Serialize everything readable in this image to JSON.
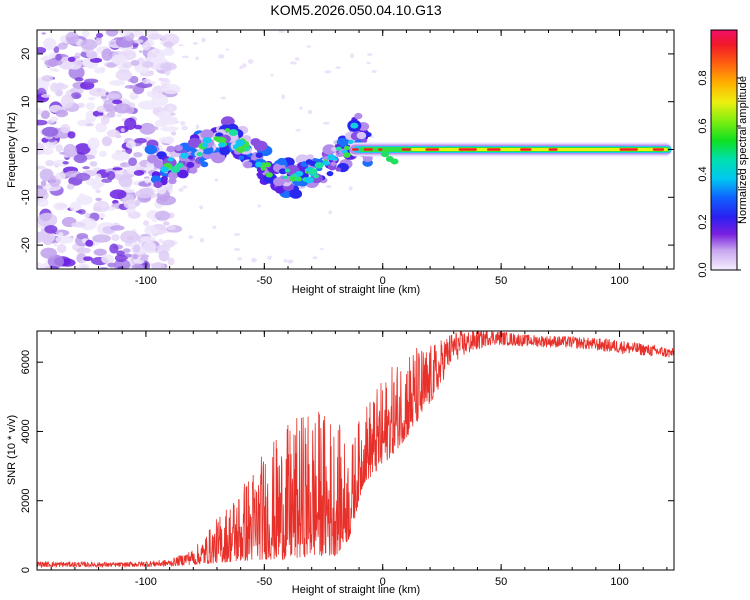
{
  "title": "KOM5.2026.050.04.10.G13",
  "chart_data": [
    {
      "type": "heatmap",
      "xlabel": "Height of straight line (km)",
      "ylabel": "Frequency (Hz)",
      "xlim": [
        -146,
        123
      ],
      "ylim": [
        -25,
        25
      ],
      "xticks": [
        "-100",
        "-50",
        "0",
        "50",
        "100"
      ],
      "xtick_values": [
        -100,
        -50,
        0,
        50,
        100
      ],
      "yticks": [
        "20",
        "10",
        "0",
        "-10",
        "-20"
      ],
      "ytick_values": [
        20,
        10,
        0,
        -10,
        -20
      ],
      "colorbar": {
        "label": "Normalized spectral amplitude",
        "range": [
          0.0,
          1.0
        ],
        "ticks": [
          "0.0",
          "0.2",
          "0.4",
          "0.6",
          "0.8"
        ],
        "tick_values": [
          0.0,
          0.2,
          0.4,
          0.6,
          0.8
        ]
      },
      "ridge": [
        {
          "x": -96,
          "y": -4
        },
        {
          "x": -88,
          "y": -3
        },
        {
          "x": -80,
          "y": -1
        },
        {
          "x": -72,
          "y": 1
        },
        {
          "x": -65,
          "y": 3
        },
        {
          "x": -55,
          "y": -1
        },
        {
          "x": -47,
          "y": -5
        },
        {
          "x": -38,
          "y": -6
        },
        {
          "x": -30,
          "y": -5
        },
        {
          "x": -22,
          "y": -2
        },
        {
          "x": -14,
          "y": 0
        },
        {
          "x": -12,
          "y": 5
        },
        {
          "x": -6,
          "y": 0
        },
        {
          "x": 2,
          "y": -2
        },
        {
          "x": 9,
          "y": 0
        },
        {
          "x": 20,
          "y": 0
        },
        {
          "x": 60,
          "y": 0
        },
        {
          "x": 120,
          "y": 0
        }
      ]
    },
    {
      "type": "line",
      "xlabel": "Height of straight line (km)",
      "ylabel": "SNR (10 * v/v)",
      "xlim": [
        -146,
        123
      ],
      "ylim": [
        0,
        6900
      ],
      "xticks": [
        "-100",
        "-50",
        "0",
        "50",
        "100"
      ],
      "xtick_values": [
        -100,
        -50,
        0,
        50,
        100
      ],
      "yticks": [
        "0",
        "2000",
        "4000",
        "6000"
      ],
      "ytick_values": [
        0,
        2000,
        4000,
        6000
      ],
      "series": [
        {
          "name": "SNR",
          "color": "#e8302a",
          "envelope": [
            {
              "x": -146,
              "low": 80,
              "high": 250
            },
            {
              "x": -110,
              "low": 80,
              "high": 220
            },
            {
              "x": -90,
              "low": 90,
              "high": 300
            },
            {
              "x": -80,
              "low": 150,
              "high": 600
            },
            {
              "x": -70,
              "low": 200,
              "high": 1500
            },
            {
              "x": -60,
              "low": 250,
              "high": 2500
            },
            {
              "x": -50,
              "low": 300,
              "high": 3500
            },
            {
              "x": -40,
              "low": 300,
              "high": 4200
            },
            {
              "x": -30,
              "low": 400,
              "high": 4800
            },
            {
              "x": -20,
              "low": 400,
              "high": 4500
            },
            {
              "x": -14,
              "low": 900,
              "high": 3500
            },
            {
              "x": -8,
              "low": 2500,
              "high": 4800
            },
            {
              "x": 0,
              "low": 3000,
              "high": 5500
            },
            {
              "x": 10,
              "low": 3800,
              "high": 6500
            },
            {
              "x": 20,
              "low": 4800,
              "high": 6500
            },
            {
              "x": 30,
              "low": 6000,
              "high": 6900
            },
            {
              "x": 45,
              "low": 6500,
              "high": 6950
            },
            {
              "x": 60,
              "low": 6450,
              "high": 6800
            },
            {
              "x": 80,
              "low": 6400,
              "high": 6750
            },
            {
              "x": 100,
              "low": 6250,
              "high": 6650
            },
            {
              "x": 123,
              "low": 6100,
              "high": 6400
            }
          ]
        }
      ]
    }
  ]
}
